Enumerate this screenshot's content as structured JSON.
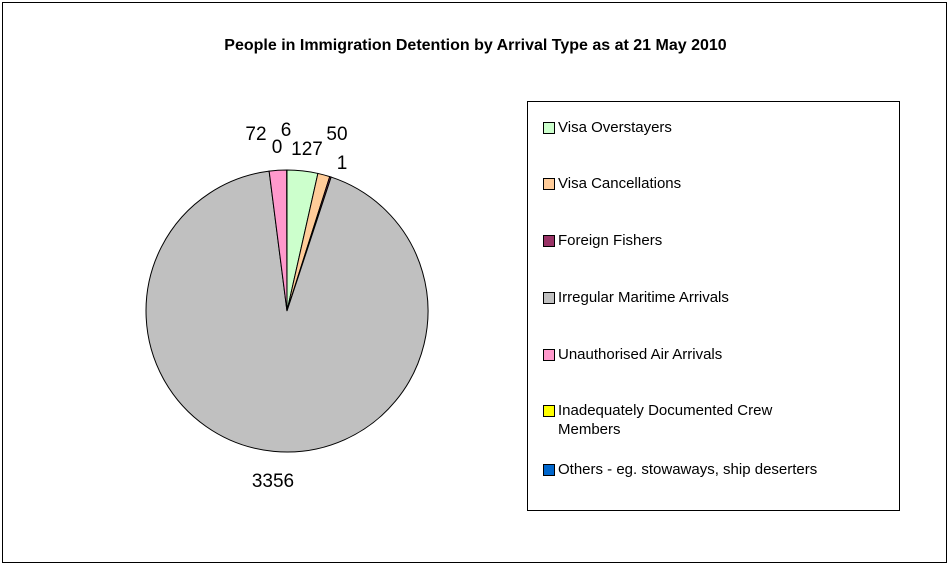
{
  "chart_data": {
    "type": "pie",
    "title": "People in Immigration Detention by Arrival Type as at 21 May 2010",
    "categories": [
      "Visa Overstayers",
      "Visa Cancellations",
      "Foreign Fishers",
      "Irregular Maritime Arrivals",
      "Unauthorised Air Arrivals",
      "Inadequately Documented Crew Members",
      "Others - eg. stowaways, ship deserters"
    ],
    "values": [
      127,
      50,
      6,
      3356,
      72,
      0,
      1
    ],
    "data_labels": [
      "127",
      "50",
      "6",
      "3356",
      "72",
      "0",
      "1"
    ],
    "colors": [
      "#CCFFCC",
      "#FFCC99",
      "#993366",
      "#C0C0C0",
      "#FF99CC",
      "#FFFF00",
      "#0066CC"
    ],
    "legend_position": "right",
    "start_angle_deg": 0,
    "direction": "clockwise"
  }
}
